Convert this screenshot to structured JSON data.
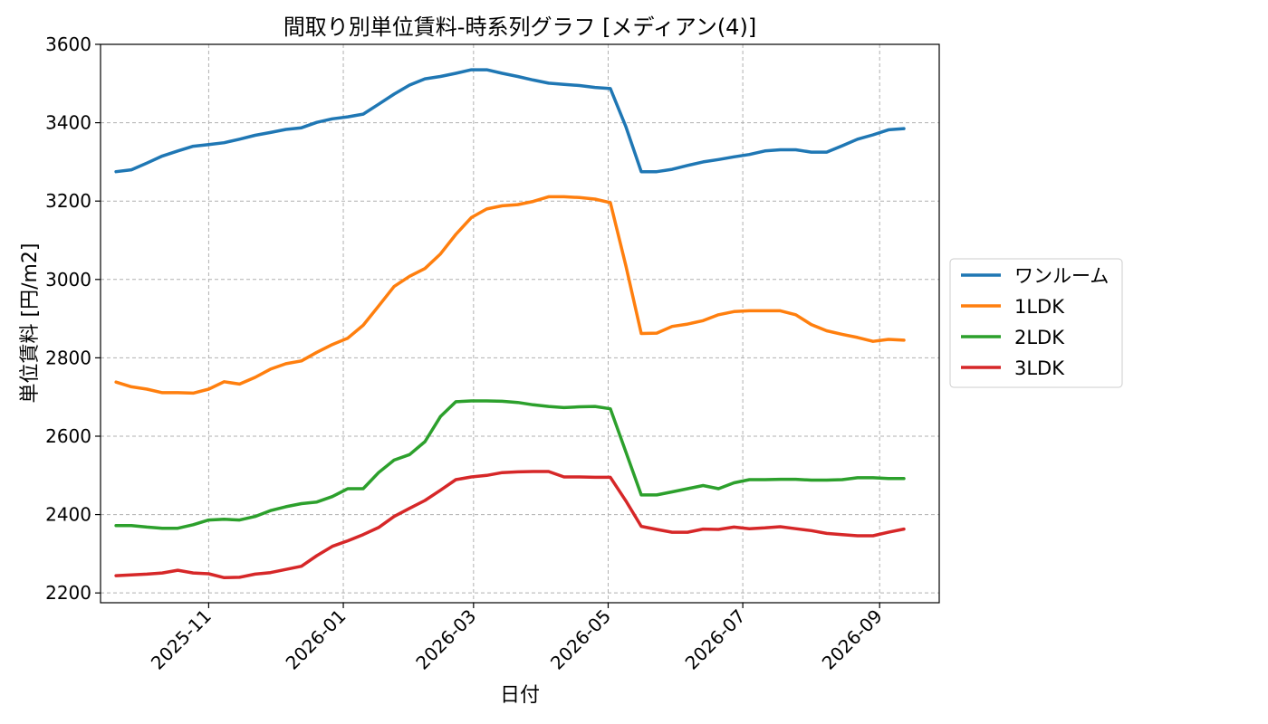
{
  "chart_data": {
    "type": "line",
    "title": "間取り別単位賃料-時系列グラフ [メディアン(4)]",
    "xlabel": "日付",
    "ylabel": "単位賃料 [円/m2]",
    "ylim": [
      2175,
      3600
    ],
    "yticks": [
      2200,
      2400,
      2600,
      2800,
      3000,
      3200,
      3400,
      3600
    ],
    "xlim": [
      "2025-09-13",
      "2026-09-28"
    ],
    "xticks": [
      "2025-11-01",
      "2026-01-01",
      "2026-03-01",
      "2026-05-01",
      "2026-07-01",
      "2026-09-01"
    ],
    "xtick_labels": [
      "2025-11",
      "2026-01",
      "2026-03",
      "2026-05",
      "2026-07",
      "2026-09"
    ],
    "grid": true,
    "legend_position": "center-right",
    "x": [
      "2025-09-20",
      "2025-09-27",
      "2025-10-04",
      "2025-10-11",
      "2025-10-18",
      "2025-10-25",
      "2025-11-01",
      "2025-11-08",
      "2025-11-15",
      "2025-11-22",
      "2025-11-29",
      "2025-12-06",
      "2025-12-13",
      "2025-12-20",
      "2025-12-27",
      "2026-01-03",
      "2026-01-10",
      "2026-01-17",
      "2026-01-24",
      "2026-01-31",
      "2026-02-07",
      "2026-02-14",
      "2026-02-21",
      "2026-02-28",
      "2026-03-07",
      "2026-03-14",
      "2026-03-21",
      "2026-03-28",
      "2026-04-04",
      "2026-04-11",
      "2026-04-18",
      "2026-04-25",
      "2026-05-02",
      "2026-05-09",
      "2026-05-16",
      "2026-05-23",
      "2026-05-30",
      "2026-06-06",
      "2026-06-13",
      "2026-06-20",
      "2026-06-27",
      "2026-07-04",
      "2026-07-11",
      "2026-07-18",
      "2026-07-25",
      "2026-08-01",
      "2026-08-08",
      "2026-08-15",
      "2026-08-22",
      "2026-08-29",
      "2026-09-05",
      "2026-09-12"
    ],
    "series": [
      {
        "name": "ワンルーム",
        "color": "#1f77b4",
        "values": [
          3275,
          3280,
          3297,
          3315,
          3328,
          3340,
          3344,
          3349,
          3358,
          3368,
          3375,
          3383,
          3387,
          3401,
          3410,
          3415,
          3422,
          3447,
          3473,
          3496,
          3512,
          3518,
          3526,
          3535,
          3535,
          3526,
          3518,
          3509,
          3501,
          3498,
          3495,
          3490,
          3487,
          3390,
          3275,
          3275,
          3281,
          3291,
          3300,
          3306,
          3313,
          3319,
          3328,
          3331,
          3331,
          3325,
          3325,
          3341,
          3358,
          3369,
          3382,
          3385
        ]
      },
      {
        "name": "1LDK",
        "color": "#ff7f0e",
        "values": [
          2738,
          2726,
          2720,
          2711,
          2711,
          2710,
          2720,
          2739,
          2733,
          2750,
          2771,
          2785,
          2792,
          2814,
          2834,
          2850,
          2883,
          2932,
          2982,
          3008,
          3028,
          3065,
          3115,
          3158,
          3180,
          3188,
          3191,
          3199,
          3211,
          3211,
          3209,
          3205,
          3196,
          3035,
          2862,
          2863,
          2880,
          2886,
          2895,
          2910,
          2918,
          2920,
          2920,
          2920,
          2910,
          2885,
          2869,
          2860,
          2852,
          2842,
          2847,
          2845
        ]
      },
      {
        "name": "2LDK",
        "color": "#2ca02c",
        "values": [
          2372,
          2372,
          2368,
          2365,
          2365,
          2374,
          2386,
          2388,
          2386,
          2395,
          2410,
          2420,
          2428,
          2432,
          2446,
          2466,
          2466,
          2507,
          2539,
          2553,
          2586,
          2650,
          2688,
          2690,
          2690,
          2689,
          2686,
          2680,
          2676,
          2673,
          2675,
          2676,
          2670,
          2560,
          2450,
          2450,
          2458,
          2466,
          2474,
          2466,
          2481,
          2489,
          2489,
          2490,
          2490,
          2488,
          2488,
          2489,
          2494,
          2494,
          2492,
          2492
        ]
      },
      {
        "name": "3LDK",
        "color": "#d62728",
        "values": [
          2244,
          2246,
          2248,
          2251,
          2258,
          2251,
          2249,
          2239,
          2240,
          2248,
          2252,
          2260,
          2268,
          2295,
          2319,
          2333,
          2349,
          2367,
          2395,
          2416,
          2436,
          2462,
          2489,
          2496,
          2500,
          2507,
          2509,
          2510,
          2510,
          2496,
          2496,
          2495,
          2495,
          2435,
          2370,
          2362,
          2355,
          2355,
          2363,
          2362,
          2368,
          2364,
          2366,
          2369,
          2364,
          2359,
          2352,
          2349,
          2346,
          2346,
          2355,
          2363
        ]
      }
    ]
  }
}
